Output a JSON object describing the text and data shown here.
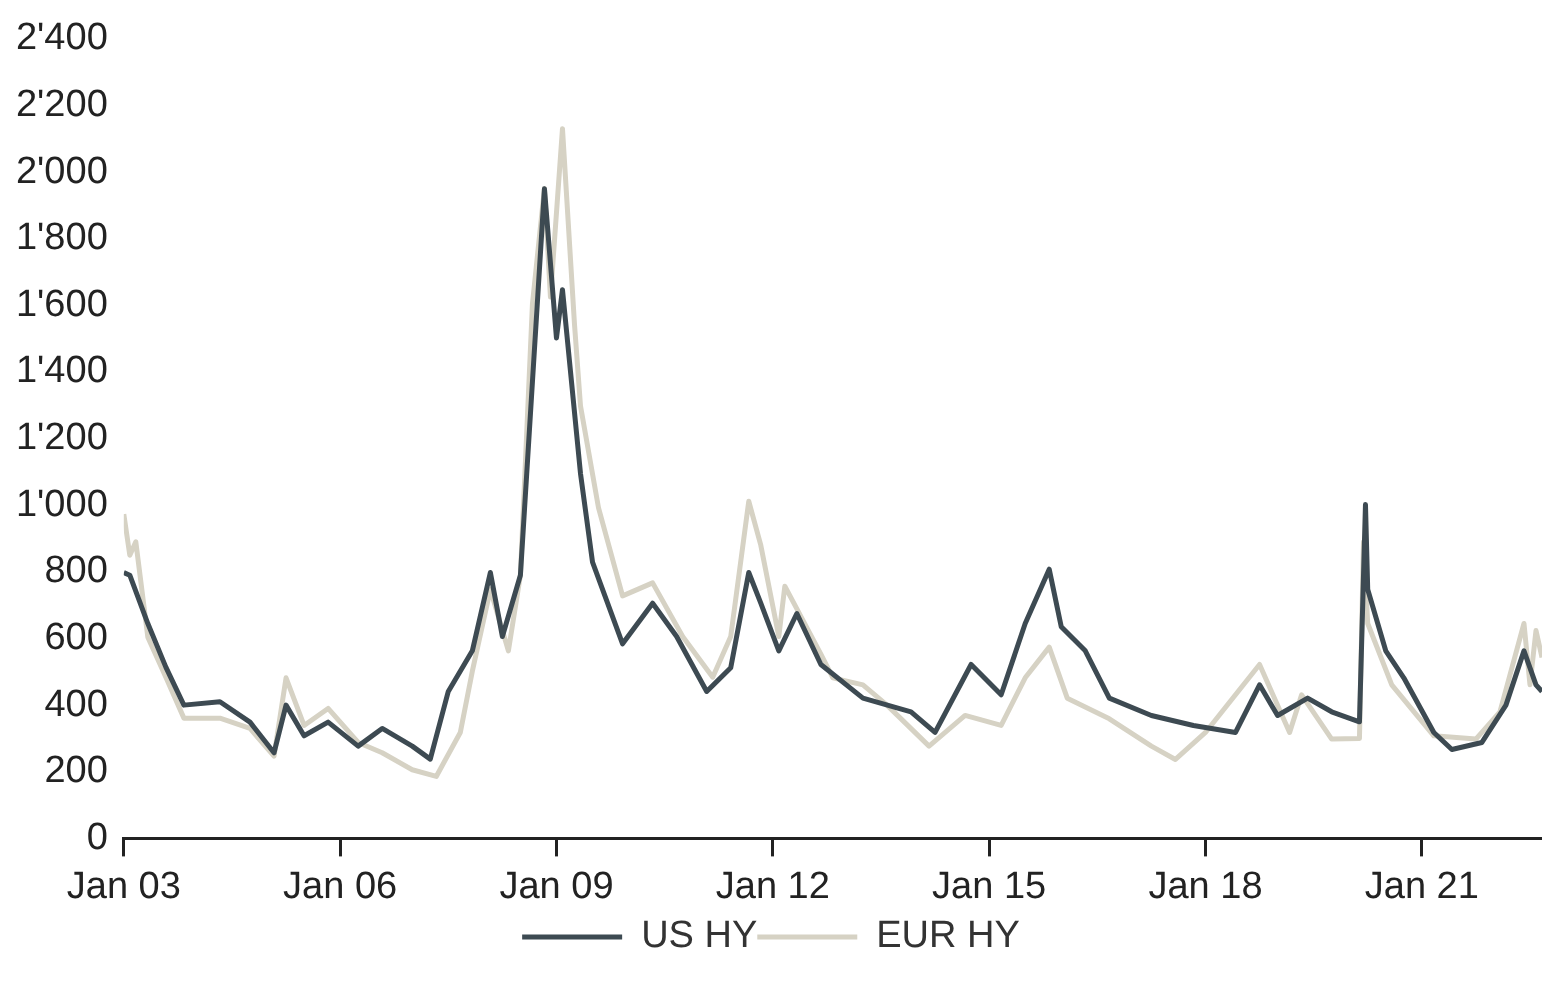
{
  "chart_data": {
    "type": "line",
    "xlim": [
      "2003-01",
      "2022-09"
    ],
    "xticks": [
      {
        "value": "2003-01",
        "label": "Jan 03"
      },
      {
        "value": "2006-01",
        "label": "Jan 06"
      },
      {
        "value": "2009-01",
        "label": "Jan 09"
      },
      {
        "value": "2012-01",
        "label": "Jan 12"
      },
      {
        "value": "2015-01",
        "label": "Jan 15"
      },
      {
        "value": "2018-01",
        "label": "Jan 18"
      },
      {
        "value": "2021-01",
        "label": "Jan 21"
      }
    ],
    "ylim": [
      0,
      2400
    ],
    "yticks": [
      0,
      200,
      400,
      600,
      800,
      {
        "value": 1000,
        "label": "1'000"
      },
      {
        "value": 1200,
        "label": "1'200"
      },
      {
        "value": 1400,
        "label": "1'400"
      },
      {
        "value": 1600,
        "label": "1'600"
      },
      {
        "value": 1800,
        "label": "1'800"
      },
      {
        "value": 2000,
        "label": "2'000"
      },
      {
        "value": 2200,
        "label": "2'200"
      },
      {
        "value": 2400,
        "label": "2'400"
      }
    ],
    "grid": false,
    "legend": "bottom",
    "marker": "none",
    "line_style": "solid",
    "series": [
      {
        "name": "US HY",
        "color": "#3d4a52",
        "x": [
          "2003-01",
          "2003-02",
          "2003-05",
          "2003-08",
          "2003-11",
          "2004-05",
          "2004-10",
          "2005-02",
          "2005-04",
          "2005-07",
          "2005-11",
          "2006-04",
          "2006-08",
          "2007-01",
          "2007-04",
          "2007-07",
          "2007-11",
          "2008-02",
          "2008-04",
          "2008-07",
          "2008-11",
          "2009-01",
          "2009-02",
          "2009-05",
          "2009-07",
          "2009-12",
          "2010-05",
          "2010-09",
          "2011-02",
          "2011-06",
          "2011-09",
          "2011-11",
          "2012-02",
          "2012-05",
          "2012-09",
          "2013-04",
          "2013-12",
          "2014-04",
          "2014-10",
          "2015-03",
          "2015-07",
          "2015-11",
          "2016-01",
          "2016-05",
          "2016-09",
          "2017-04",
          "2017-11",
          "2018-06",
          "2018-10",
          "2019-01",
          "2019-06",
          "2019-10",
          "2020-02-20",
          "2020-03-20",
          "2020-04",
          "2020-07",
          "2020-10",
          "2021-03",
          "2021-06",
          "2021-11",
          "2022-03",
          "2022-06",
          "2022-08",
          "2022-09"
        ],
        "values": [
          798,
          790,
          645,
          514,
          400,
          410,
          349,
          257,
          400,
          308,
          349,
          277,
          330,
          277,
          238,
          441,
          563,
          798,
          606,
          790,
          1950,
          1502,
          1647,
          1095,
          829,
          584,
          706,
          606,
          441,
          512,
          798,
          706,
          563,
          675,
          522,
          421,
          380,
          318,
          522,
          431,
          645,
          808,
          635,
          563,
          421,
          369,
          339,
          318,
          461,
          369,
          421,
          380,
          350,
          1002,
          747,
          563,
          482,
          318,
          267,
          288,
          400,
          563,
          461,
          441
        ]
      },
      {
        "name": "EUR HY",
        "color": "#d6d2c4",
        "x": [
          "2003-01",
          "2003-02",
          "2003-03",
          "2003-05",
          "2003-08",
          "2003-11",
          "2004-05",
          "2004-10",
          "2005-02",
          "2005-04",
          "2005-07",
          "2005-11",
          "2006-04",
          "2006-08",
          "2007-01",
          "2007-05",
          "2007-09",
          "2007-11",
          "2008-02",
          "2008-05",
          "2008-07",
          "2008-09",
          "2008-11",
          "2008-12",
          "2009-02",
          "2009-04",
          "2009-05",
          "2009-08",
          "2009-12",
          "2010-05",
          "2010-10",
          "2011-03",
          "2011-06",
          "2011-09",
          "2011-11",
          "2012-02",
          "2012-03",
          "2012-09",
          "2012-11",
          "2013-04",
          "2013-08",
          "2014-03",
          "2014-09",
          "2015-03",
          "2015-07",
          "2015-11",
          "2016-02",
          "2016-09",
          "2017-04",
          "2017-08",
          "2018-01",
          "2018-10",
          "2019-03",
          "2019-05",
          "2019-10",
          "2020-02-20",
          "2020-03-10",
          "2020-04",
          "2020-08",
          "2021-03",
          "2021-10",
          "2022-02",
          "2022-06",
          "2022-07",
          "2022-08",
          "2022-09"
        ],
        "values": [
          973,
          850,
          890,
          604,
          484,
          361,
          361,
          330,
          247,
          482,
          339,
          390,
          288,
          257,
          206,
          186,
          318,
          502,
          747,
          563,
          790,
          1604,
          1951,
          1625,
          2130,
          1543,
          1298,
          992,
          728,
          767,
          606,
          484,
          606,
          1012,
          880,
          606,
          757,
          553,
          482,
          461,
          400,
          277,
          369,
          339,
          482,
          574,
          421,
          359,
          277,
          237,
          318,
          522,
          318,
          431,
          298,
          300,
          890,
          645,
          461,
          308,
          298,
          380,
          645,
          461,
          624,
          543
        ]
      }
    ]
  }
}
